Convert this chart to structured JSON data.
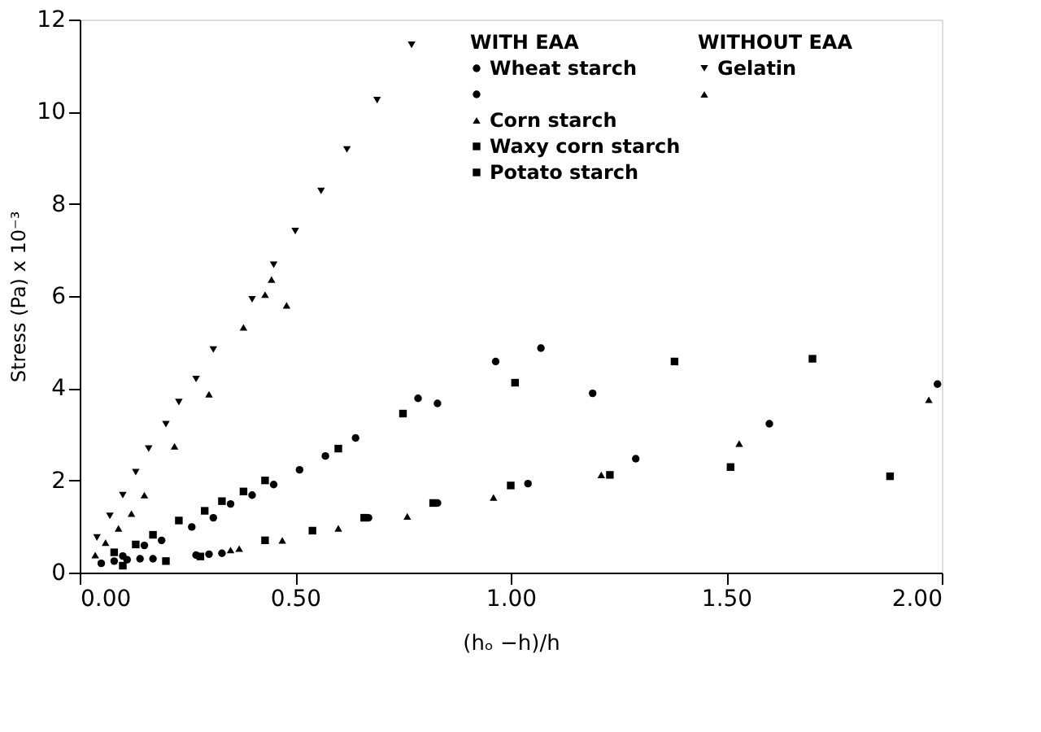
{
  "chart_data": {
    "type": "scatter",
    "xlabel": "(hₒ −h)/h",
    "ylabel": "Stress (Pa) x 10⁻³",
    "xlim": [
      0,
      2
    ],
    "ylim": [
      0,
      12
    ],
    "xticks": [
      {
        "value": 0,
        "label": "0.00"
      },
      {
        "value": 0.5,
        "label": "0.50"
      },
      {
        "value": 1,
        "label": "1.00"
      },
      {
        "value": 1.5,
        "label": "1.50"
      },
      {
        "value": 2,
        "label": "2.00"
      }
    ],
    "yticks": [
      0,
      2,
      4,
      6,
      8,
      10,
      12
    ],
    "grid": false,
    "legend": "top right",
    "annotations": [
      "WITH EAA",
      "WITHOUT EAA"
    ],
    "series": [
      {
        "name": "Wheat starch",
        "color": "#000000",
        "marker": "circle",
        "x": [
          0.05,
          0.08,
          0.11,
          0.14,
          0.17,
          0.27,
          0.3,
          0.33,
          0.67,
          0.83,
          1.04,
          1.29,
          1.6,
          1.99
        ],
        "values": [
          0.2,
          0.25,
          0.28,
          0.3,
          0.3,
          0.38,
          0.4,
          0.42,
          1.19,
          1.51,
          1.93,
          2.47,
          3.23,
          4.09
        ]
      },
      {
        "color": "#000000",
        "marker": "circle",
        "x": [
          0.1,
          0.15,
          0.19,
          0.26,
          0.31,
          0.35,
          0.4,
          0.45,
          0.51,
          0.57,
          0.64,
          0.785,
          0.83,
          0.965,
          1.07,
          1.19
        ],
        "values": [
          0.36,
          0.59,
          0.7,
          0.99,
          1.19,
          1.49,
          1.68,
          1.91,
          2.23,
          2.53,
          2.92,
          3.78,
          3.67,
          4.58,
          4.87,
          3.89
        ]
      },
      {
        "name": "Corn starch",
        "color": "#000000",
        "marker": "triangle",
        "x": [
          0.35,
          0.37,
          0.47,
          0.6,
          0.76,
          0.96,
          1.21,
          1.53,
          1.97
        ],
        "values": [
          0.49,
          0.52,
          0.7,
          0.96,
          1.22,
          1.63,
          2.12,
          2.8,
          3.75
        ]
      },
      {
        "name": "Waxy corn starch",
        "color": "#000000",
        "marker": "square",
        "x": [
          0.1,
          0.2,
          0.28,
          0.43,
          0.54,
          0.66,
          0.82,
          1.0,
          1.23,
          1.51,
          1.88
        ],
        "values": [
          0.15,
          0.25,
          0.35,
          0.7,
          0.91,
          1.19,
          1.51,
          1.89,
          2.12,
          2.29,
          2.09
        ]
      },
      {
        "name": "Potato starch",
        "color": "#000000",
        "marker": "square",
        "x": [
          0.08,
          0.13,
          0.17,
          0.23,
          0.29,
          0.33,
          0.38,
          0.43,
          0.6,
          0.75,
          1.01,
          1.38,
          1.7
        ],
        "values": [
          0.44,
          0.61,
          0.82,
          1.13,
          1.34,
          1.55,
          1.76,
          2.0,
          2.69,
          3.45,
          4.12,
          4.58,
          4.64
        ]
      },
      {
        "name": "Gelatin",
        "color": "#000000",
        "marker": "triangle-down",
        "x": [
          0.04,
          0.07,
          0.1,
          0.13,
          0.16,
          0.2,
          0.23,
          0.27,
          0.31,
          0.4,
          0.45,
          0.5,
          0.56,
          0.62,
          0.69,
          0.77
        ],
        "values": [
          0.76,
          1.23,
          1.68,
          2.18,
          2.69,
          3.22,
          3.7,
          4.2,
          4.84,
          5.93,
          6.68,
          7.41,
          8.28,
          9.18,
          10.25,
          11.45
        ]
      },
      {
        "color": "#000000",
        "marker": "triangle",
        "x": [
          0.036,
          0.06,
          0.09,
          0.12,
          0.15,
          0.22,
          0.3,
          0.38,
          0.43,
          0.445,
          0.48
        ],
        "values": [
          0.38,
          0.65,
          0.96,
          1.28,
          1.68,
          2.74,
          3.87,
          5.32,
          6.03,
          6.36,
          5.8
        ]
      }
    ]
  }
}
